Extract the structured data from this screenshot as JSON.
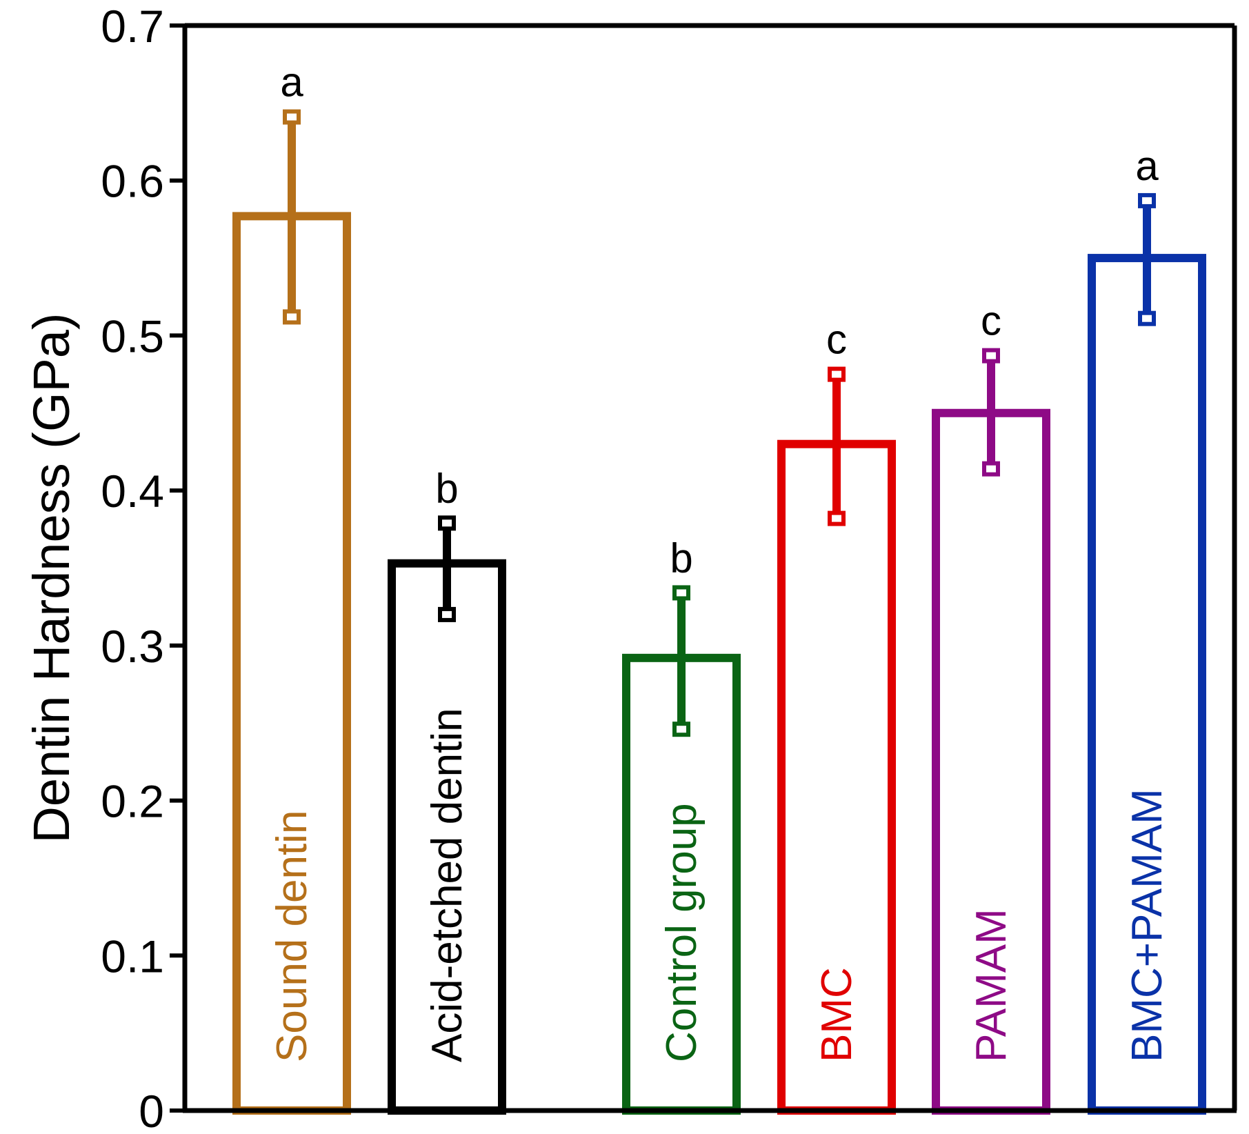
{
  "chart_data": {
    "type": "bar",
    "title": "",
    "xlabel": "",
    "ylabel": "Dentin Hardness (GPa)",
    "ylim": [
      0,
      0.7
    ],
    "yticks": [
      0,
      0.1,
      0.2,
      0.3,
      0.4,
      0.5,
      0.6,
      0.7
    ],
    "ytick_labels": [
      "0",
      "0.1",
      "0.2",
      "0.3",
      "0.4",
      "0.5",
      "0.6",
      "0.7"
    ],
    "grid": false,
    "categories": [
      "Sound dentin",
      "Acid-etched dentin",
      "Control group",
      "BMC",
      "PAMAM",
      "BMC+PAMAM"
    ],
    "values": [
      0.577,
      0.353,
      0.292,
      0.43,
      0.45,
      0.55
    ],
    "error_low": [
      0.512,
      0.32,
      0.246,
      0.382,
      0.414,
      0.511
    ],
    "error_high": [
      0.641,
      0.379,
      0.334,
      0.475,
      0.487,
      0.587
    ],
    "significance": [
      "a",
      "b",
      "b",
      "c",
      "c",
      "a"
    ],
    "colors": [
      "#B5701A",
      "#000000",
      "#0A6414",
      "#E00000",
      "#8E0A86",
      "#0A32A8"
    ]
  }
}
